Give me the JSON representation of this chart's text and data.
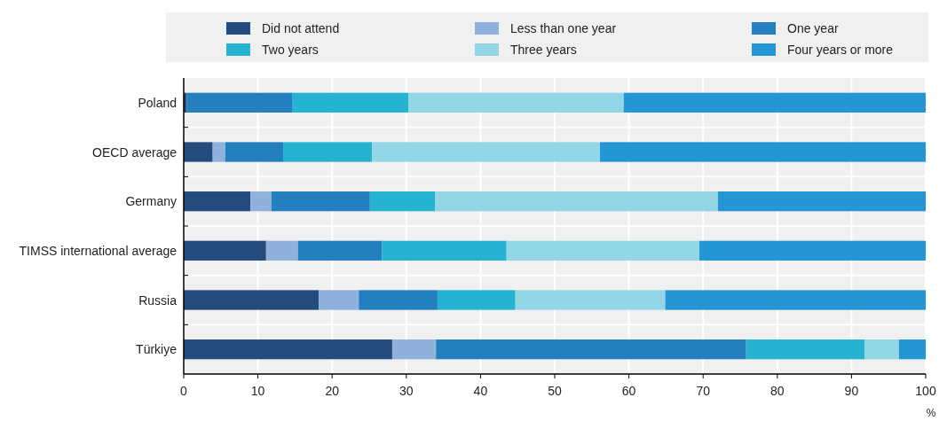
{
  "chart_data": {
    "type": "bar",
    "orientation": "horizontal",
    "stacked": true,
    "xlabel": "%",
    "categories": [
      "Poland",
      "OECD average",
      "Germany",
      "TIMSS international average",
      "Russia",
      "Türkiye"
    ],
    "series": [
      {
        "name": "Did not attend",
        "color": "#244b7e",
        "values": [
          0.4,
          3.9,
          9.0,
          11.1,
          18.2,
          28.1
        ]
      },
      {
        "name": "Less than one year",
        "color": "#8fb1db",
        "values": [
          0,
          1.7,
          2.8,
          4.3,
          5.4,
          5.9
        ]
      },
      {
        "name": "One year",
        "color": "#237fbd",
        "values": [
          14.2,
          7.8,
          13.3,
          11.3,
          10.6,
          41.8
        ]
      },
      {
        "name": "Two years",
        "color": "#25b3d1",
        "values": [
          15.7,
          12.0,
          8.8,
          16.8,
          10.5,
          16.0
        ]
      },
      {
        "name": "Three years",
        "color": "#93d6e6",
        "values": [
          29.0,
          30.7,
          38.1,
          26.0,
          20.2,
          4.6
        ]
      },
      {
        "name": "Four years or more",
        "color": "#2396d3",
        "values": [
          40.7,
          43.9,
          28.0,
          30.5,
          35.1,
          3.6
        ]
      }
    ],
    "xlim": [
      0,
      100
    ],
    "xticks": [
      0,
      10,
      20,
      30,
      40,
      50,
      60,
      70,
      80,
      90,
      100
    ],
    "grid": "x",
    "legend": "top"
  }
}
